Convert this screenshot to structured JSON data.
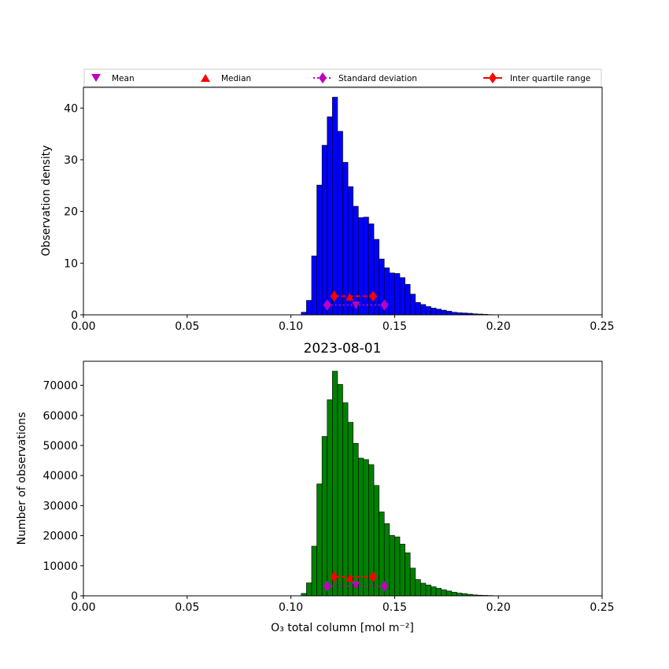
{
  "legend": {
    "placement": "top",
    "items": [
      {
        "label": "Mean",
        "marker": "down-triangle",
        "color": "#bf00bf"
      },
      {
        "label": "Median",
        "marker": "up-triangle",
        "color": "#ff0000"
      },
      {
        "label": "Standard deviation",
        "marker": "diamond-dotted",
        "color": "#bf00bf"
      },
      {
        "label": "Inter quartile range",
        "marker": "diamond-dashed",
        "color": "#ff0000"
      }
    ]
  },
  "colors": {
    "top_bars": "#0000ff",
    "bottom_bars": "#008000",
    "mean": "#bf00bf",
    "median": "#ff0000",
    "std": "#bf00bf",
    "iqr": "#ff0000"
  },
  "chart_data": [
    {
      "type": "bar",
      "subtype": "histogram",
      "title": "",
      "xlabel": "",
      "ylabel": "Observation density",
      "xlim": [
        0.0,
        0.25
      ],
      "ylim": [
        0,
        44
      ],
      "xticks": [
        "0.00",
        "0.05",
        "0.10",
        "0.15",
        "0.20",
        "0.25"
      ],
      "yticks": [
        "0",
        "10",
        "20",
        "30",
        "40"
      ],
      "bin_width": 0.0025,
      "bin_start": 0.105,
      "values": [
        0.5,
        2.8,
        11.4,
        25.1,
        32.8,
        38.3,
        42.1,
        35.5,
        29.5,
        24.8,
        21.0,
        18.8,
        18.9,
        17.6,
        14.6,
        10.8,
        9.1,
        8.1,
        8.0,
        7.2,
        5.9,
        4.0,
        2.4,
        2.0,
        1.6,
        1.3,
        1.1,
        0.9,
        0.7,
        0.5,
        0.4,
        0.35,
        0.3,
        0.2,
        0.15,
        0.1,
        0.05
      ],
      "stats": {
        "mean": 0.1313,
        "median": 0.1283,
        "std_range": [
          0.1175,
          0.1451
        ],
        "iqr_range": [
          0.1209,
          0.1396
        ],
        "median_level": 3.5,
        "mean_level": 1.8,
        "std_level": 1.9,
        "iqr_level": 3.6
      }
    },
    {
      "type": "bar",
      "subtype": "histogram",
      "title": "2023-08-01",
      "xlabel": "O₃ total column [mol m⁻²]",
      "ylabel": "Number of observations",
      "xlim": [
        0.0,
        0.25
      ],
      "ylim": [
        0,
        78000
      ],
      "xticks": [
        "0.00",
        "0.05",
        "0.10",
        "0.15",
        "0.20",
        "0.25"
      ],
      "yticks": [
        "0",
        "10000",
        "20000",
        "30000",
        "40000",
        "50000",
        "60000",
        "70000"
      ],
      "bin_width": 0.0025,
      "bin_start": 0.105,
      "values": [
        800,
        4300,
        16500,
        37200,
        53000,
        65200,
        74700,
        70300,
        64200,
        57700,
        50700,
        45800,
        45300,
        43600,
        36700,
        27900,
        24000,
        20100,
        19600,
        17200,
        14300,
        9200,
        5400,
        4200,
        3600,
        3000,
        2500,
        2000,
        1600,
        1200,
        900,
        700,
        500,
        300,
        200,
        150,
        100
      ],
      "stats": {
        "mean": 0.1313,
        "median": 0.1283,
        "std_range": [
          0.1175,
          0.1451
        ],
        "iqr_range": [
          0.1209,
          0.1396
        ],
        "median_level": 6000,
        "mean_level": 3400,
        "std_level": 3200,
        "iqr_level": 6300
      }
    }
  ]
}
